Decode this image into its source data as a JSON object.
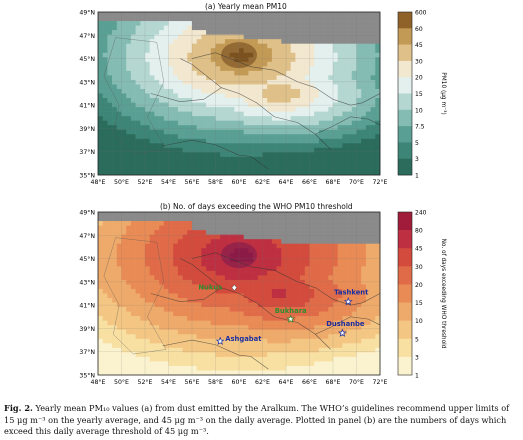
{
  "panels": [
    {
      "title": "(a) Yearly mean PM10",
      "y_tick_labels": [
        "49°N",
        "47°N",
        "45°N",
        "43°N",
        "41°N",
        "39°N",
        "37°N",
        "35°N"
      ],
      "x_tick_labels": [
        "48°E",
        "50°E",
        "52°E",
        "54°E",
        "56°E",
        "58°E",
        "60°E",
        "62°E",
        "64°E",
        "66°E",
        "68°E",
        "70°E",
        "72°E"
      ],
      "colorbar_ticks": [
        "600",
        "60",
        "45",
        "30",
        "20",
        "15",
        "10",
        "7.5",
        "5",
        "3",
        "1"
      ],
      "colorbar_label": "PM10 (μg m⁻³)",
      "colors": [
        "#2b6c5c",
        "#3d8576",
        "#5a9f93",
        "#84bbb2",
        "#b4d7d1",
        "#e3f0ee",
        "#f2e7cf",
        "#dfc088",
        "#c39a55",
        "#8f6229"
      ]
    },
    {
      "title": "(b) No. of days exceeding the WHO PM10 threshold",
      "y_tick_labels": [
        "49°N",
        "47°N",
        "45°N",
        "43°N",
        "41°N",
        "39°N",
        "37°N",
        "35°N"
      ],
      "x_tick_labels": [
        "48°E",
        "50°E",
        "52°E",
        "54°E",
        "56°E",
        "58°E",
        "60°E",
        "62°E",
        "64°E",
        "66°E",
        "68°E",
        "70°E",
        "72°E"
      ],
      "colorbar_ticks": [
        "240",
        "80",
        "45",
        "30",
        "20",
        "15",
        "10",
        "5",
        "3",
        "1"
      ],
      "colorbar_label": "No. of days exceeding WHO threshold",
      "colors": [
        "#fbf3cf",
        "#f8e0a2",
        "#f4c683",
        "#eeaa6a",
        "#e98b55",
        "#e06b48",
        "#d34b3d",
        "#bd2f41",
        "#a11c3a"
      ],
      "cities": [
        {
          "name": "Nukus",
          "color": "#2e8b2e",
          "marker": "diamond"
        },
        {
          "name": "Bukhara",
          "color": "#2e8b2e",
          "marker": "star"
        },
        {
          "name": "Tashkent",
          "color": "#1a2ea0",
          "marker": "star"
        },
        {
          "name": "Dushanbe",
          "color": "#1a2ea0",
          "marker": "star"
        },
        {
          "name": "Ashgabat",
          "color": "#1a2ea0",
          "marker": "star"
        }
      ]
    }
  ],
  "caption": {
    "label": "Fig. 2.",
    "text": "Yearly mean PM₁₀ values (a) from dust emitted by the Aralkum. The WHO’s guidelines recommend upper limits of 15 μg m⁻³ on the yearly average, and 45 μg m⁻³ on the daily average. Plotted in panel (b) are the numbers of days which exceed this daily average threshold of 45 μg m⁻³."
  }
}
